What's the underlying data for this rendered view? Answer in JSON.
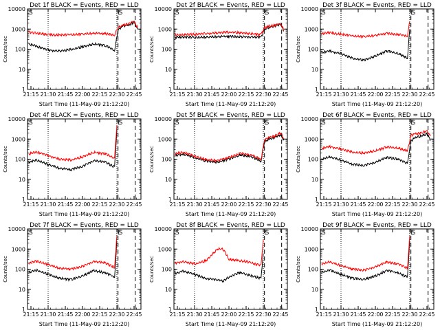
{
  "chart_data": [
    {
      "type": "line",
      "title": "Det 1f BLACK = Events, RED = LLD",
      "ylabel": "Counts/sec",
      "xlabel": "Start Time (11-May-09 21:12:20)",
      "ylim": [
        1,
        10000
      ],
      "yscale": "log",
      "xlim": [
        "21:12",
        "22:51"
      ],
      "x_ticks": [
        "21:15",
        "21:30",
        "21:45",
        "22:00",
        "22:15",
        "22:30",
        "22:45"
      ],
      "y_ticks": [
        "1",
        "10",
        "100",
        "1000",
        "10000"
      ],
      "markers": [
        {
          "time": "21:30",
          "style": "dotted"
        },
        {
          "time": "22:30",
          "style": "dotted"
        },
        {
          "time": "22:31",
          "style": "dashed"
        },
        {
          "time": "22:46",
          "style": "dashed"
        }
      ],
      "marker_labels": [
        "S",
        "E",
        "S"
      ],
      "series": [
        {
          "color": "#000000",
          "x": [
            "21:13",
            "21:20",
            "21:30",
            "21:40",
            "21:50",
            "22:00",
            "22:10",
            "22:20",
            "22:28",
            "22:31",
            "22:35",
            "22:40",
            "22:45",
            "22:48"
          ],
          "values": [
            180,
            140,
            90,
            80,
            95,
            130,
            180,
            150,
            85,
            900,
            1400,
            1500,
            2200,
            1000
          ]
        },
        {
          "color": "#ff0000",
          "x": [
            "21:13",
            "21:20",
            "21:30",
            "21:40",
            "21:50",
            "22:00",
            "22:10",
            "22:20",
            "22:28",
            "22:31",
            "22:35",
            "22:40",
            "22:45",
            "22:48"
          ],
          "values": [
            700,
            620,
            520,
            500,
            520,
            560,
            620,
            580,
            520,
            1200,
            1500,
            1800,
            2400,
            1200
          ]
        }
      ]
    },
    {
      "type": "line",
      "title": "Det 2f BLACK = Events, RED = LLD",
      "ylabel": "Counts/sec",
      "xlabel": "Start Time (11-May-09 21:12:20)",
      "ylim": [
        1,
        10000
      ],
      "yscale": "log",
      "xlim": [
        "21:12",
        "22:51"
      ],
      "x_ticks": [
        "21:15",
        "21:30",
        "21:45",
        "22:00",
        "22:15",
        "22:30",
        "22:45"
      ],
      "y_ticks": [
        "1",
        "10",
        "100",
        "1000",
        "10000"
      ],
      "markers": [
        {
          "time": "21:30",
          "style": "dotted"
        },
        {
          "time": "22:30",
          "style": "dotted"
        },
        {
          "time": "22:31",
          "style": "dashed"
        },
        {
          "time": "22:46",
          "style": "dashed"
        }
      ],
      "marker_labels": [
        "S",
        "E",
        "S"
      ],
      "series": [
        {
          "color": "#000000",
          "x": [
            "21:13",
            "21:20",
            "21:30",
            "21:40",
            "21:50",
            "22:00",
            "22:10",
            "22:20",
            "22:28",
            "22:31",
            "22:35",
            "22:40",
            "22:45",
            "22:48"
          ],
          "values": [
            380,
            400,
            380,
            400,
            420,
            430,
            420,
            400,
            380,
            950,
            1200,
            1400,
            1700,
            800
          ]
        },
        {
          "color": "#ff0000",
          "x": [
            "21:13",
            "21:20",
            "21:30",
            "21:40",
            "21:50",
            "22:00",
            "22:10",
            "22:20",
            "22:28",
            "22:31",
            "22:35",
            "22:40",
            "22:45",
            "22:48"
          ],
          "values": [
            500,
            520,
            550,
            600,
            650,
            700,
            650,
            580,
            520,
            1100,
            1400,
            1500,
            1800,
            900
          ]
        }
      ]
    },
    {
      "type": "line",
      "title": "Det 3f BLACK = Events, RED = LLD",
      "ylabel": "Counts/sec",
      "xlabel": "Start Time (11-May-09 21:12:20)",
      "ylim": [
        1,
        10000
      ],
      "yscale": "log",
      "xlim": [
        "21:12",
        "22:51"
      ],
      "x_ticks": [
        "21:15",
        "21:30",
        "21:45",
        "22:00",
        "22:15",
        "22:30",
        "22:45"
      ],
      "y_ticks": [
        "1",
        "10",
        "100",
        "1000",
        "10000"
      ],
      "markers": [
        {
          "time": "21:30",
          "style": "dotted"
        },
        {
          "time": "22:30",
          "style": "dotted"
        },
        {
          "time": "22:31",
          "style": "dashed"
        },
        {
          "time": "22:46",
          "style": "dashed"
        }
      ],
      "marker_labels": [
        "S",
        "E",
        "S"
      ],
      "series": [
        {
          "color": "#000000",
          "x": [
            "21:13",
            "21:20",
            "21:30",
            "21:40",
            "21:50",
            "22:00",
            "22:10",
            "22:20",
            "22:28",
            "22:30"
          ],
          "values": [
            70,
            80,
            60,
            35,
            28,
            45,
            80,
            60,
            35,
            1000
          ]
        },
        {
          "color": "#ff0000",
          "x": [
            "21:13",
            "21:20",
            "21:30",
            "21:40",
            "21:50",
            "22:00",
            "22:10",
            "22:20",
            "22:28",
            "22:30"
          ],
          "values": [
            600,
            650,
            550,
            450,
            420,
            480,
            600,
            550,
            450,
            2500
          ]
        }
      ]
    },
    {
      "type": "line",
      "title": "Det 4f BLACK = Events, RED = LLD",
      "ylabel": "Counts/sec",
      "xlabel": "Start Time (11-May-09 21:12:20)",
      "ylim": [
        1,
        10000
      ],
      "yscale": "log",
      "xlim": [
        "21:12",
        "22:51"
      ],
      "x_ticks": [
        "21:15",
        "21:30",
        "21:45",
        "22:00",
        "22:15",
        "22:30",
        "22:45"
      ],
      "y_ticks": [
        "1",
        "10",
        "100",
        "1000",
        "10000"
      ],
      "markers": [
        {
          "time": "21:30",
          "style": "dotted"
        },
        {
          "time": "22:30",
          "style": "dotted"
        },
        {
          "time": "22:31",
          "style": "dashed"
        },
        {
          "time": "22:46",
          "style": "dashed"
        }
      ],
      "marker_labels": [
        "S",
        "E",
        "S"
      ],
      "series": [
        {
          "color": "#000000",
          "x": [
            "21:13",
            "21:20",
            "21:30",
            "21:40",
            "21:50",
            "22:00",
            "22:10",
            "22:20",
            "22:28",
            "22:30"
          ],
          "values": [
            70,
            90,
            55,
            35,
            30,
            45,
            85,
            70,
            40,
            3000
          ]
        },
        {
          "color": "#ff0000",
          "x": [
            "21:13",
            "21:20",
            "21:30",
            "21:40",
            "21:50",
            "22:00",
            "22:10",
            "22:20",
            "22:28",
            "22:30"
          ],
          "values": [
            180,
            230,
            150,
            100,
            90,
            130,
            220,
            180,
            110,
            5000
          ]
        }
      ]
    },
    {
      "type": "line",
      "title": "Det 5f BLACK = Events, RED = LLD",
      "ylabel": "Counts/sec",
      "xlabel": "Start Time (11-May-09 21:12:20)",
      "ylim": [
        1,
        10000
      ],
      "yscale": "log",
      "xlim": [
        "21:12",
        "22:51"
      ],
      "x_ticks": [
        "21:15",
        "21:30",
        "21:45",
        "22:00",
        "22:15",
        "22:30",
        "22:45"
      ],
      "y_ticks": [
        "1",
        "10",
        "100",
        "1000",
        "10000"
      ],
      "markers": [
        {
          "time": "21:30",
          "style": "dotted"
        },
        {
          "time": "22:30",
          "style": "dotted"
        },
        {
          "time": "22:31",
          "style": "dashed"
        },
        {
          "time": "22:46",
          "style": "dashed"
        }
      ],
      "marker_labels": [
        "S",
        "E",
        "S"
      ],
      "series": [
        {
          "color": "#000000",
          "x": [
            "21:13",
            "21:20",
            "21:30",
            "21:40",
            "21:50",
            "22:00",
            "22:10",
            "22:20",
            "22:28",
            "22:31",
            "22:35",
            "22:40",
            "22:45",
            "22:48"
          ],
          "values": [
            150,
            180,
            120,
            80,
            70,
            100,
            160,
            130,
            80,
            700,
            1000,
            1200,
            1600,
            900
          ]
        },
        {
          "color": "#ff0000",
          "x": [
            "21:13",
            "21:20",
            "21:30",
            "21:40",
            "21:50",
            "22:00",
            "22:10",
            "22:20",
            "22:28",
            "22:31",
            "22:35",
            "22:40",
            "22:45",
            "22:48"
          ],
          "values": [
            180,
            220,
            140,
            95,
            85,
            120,
            200,
            160,
            95,
            900,
            1200,
            1400,
            2000,
            1100
          ]
        }
      ]
    },
    {
      "type": "line",
      "title": "Det 6f BLACK = Events, RED = LLD",
      "ylabel": "Counts/sec",
      "xlabel": "Start Time (11-May-09 21:12:20)",
      "ylim": [
        1,
        10000
      ],
      "yscale": "log",
      "xlim": [
        "21:12",
        "22:51"
      ],
      "x_ticks": [
        "21:15",
        "21:30",
        "21:45",
        "22:00",
        "22:15",
        "22:30",
        "22:45"
      ],
      "y_ticks": [
        "1",
        "10",
        "100",
        "1000",
        "10000"
      ],
      "markers": [
        {
          "time": "21:30",
          "style": "dotted"
        },
        {
          "time": "22:30",
          "style": "dotted"
        },
        {
          "time": "22:31",
          "style": "dashed"
        },
        {
          "time": "22:46",
          "style": "dashed"
        }
      ],
      "marker_labels": [
        "S",
        "E",
        "S"
      ],
      "series": [
        {
          "color": "#000000",
          "x": [
            "21:13",
            "21:20",
            "21:30",
            "21:40",
            "21:50",
            "22:00",
            "22:10",
            "22:20",
            "22:28",
            "22:31",
            "22:35",
            "22:40",
            "22:45",
            "22:48"
          ],
          "values": [
            100,
            130,
            90,
            55,
            50,
            70,
            120,
            100,
            60,
            800,
            1200,
            1400,
            1800,
            900
          ]
        },
        {
          "color": "#ff0000",
          "x": [
            "21:13",
            "21:20",
            "21:30",
            "21:40",
            "21:50",
            "22:00",
            "22:10",
            "22:20",
            "22:28",
            "22:31",
            "22:35",
            "22:40",
            "22:45",
            "22:48"
          ],
          "values": [
            350,
            420,
            320,
            220,
            200,
            260,
            400,
            350,
            250,
            1500,
            1800,
            2000,
            2600,
            1400
          ]
        }
      ]
    },
    {
      "type": "line",
      "title": "Det 7f BLACK = Events, RED = LLD",
      "ylabel": "Counts/sec",
      "xlabel": "Start Time (11-May-09 21:12:20)",
      "ylim": [
        1,
        10000
      ],
      "yscale": "log",
      "xlim": [
        "21:12",
        "22:51"
      ],
      "x_ticks": [
        "21:15",
        "21:30",
        "21:45",
        "22:00",
        "22:15",
        "22:30",
        "22:45"
      ],
      "y_ticks": [
        "1",
        "10",
        "100",
        "1000",
        "10000"
      ],
      "markers": [
        {
          "time": "21:30",
          "style": "dotted"
        },
        {
          "time": "22:30",
          "style": "dotted"
        },
        {
          "time": "22:31",
          "style": "dashed"
        },
        {
          "time": "22:46",
          "style": "dashed"
        }
      ],
      "marker_labels": [
        "S",
        "E",
        "S"
      ],
      "series": [
        {
          "color": "#000000",
          "x": [
            "21:13",
            "21:20",
            "21:30",
            "21:40",
            "21:50",
            "22:00",
            "22:10",
            "22:20",
            "22:28",
            "22:30"
          ],
          "values": [
            70,
            90,
            55,
            35,
            30,
            45,
            85,
            65,
            40,
            2500
          ]
        },
        {
          "color": "#ff0000",
          "x": [
            "21:13",
            "21:20",
            "21:30",
            "21:40",
            "21:50",
            "22:00",
            "22:10",
            "22:20",
            "22:28",
            "22:30"
          ],
          "values": [
            200,
            250,
            170,
            110,
            100,
            140,
            240,
            200,
            120,
            4500
          ]
        }
      ]
    },
    {
      "type": "line",
      "title": "Det 8f BLACK = Events, RED = LLD",
      "ylabel": "Counts/sec",
      "xlabel": "Start Time (11-May-09 21:12:20)",
      "ylim": [
        1,
        10000
      ],
      "yscale": "log",
      "xlim": [
        "21:12",
        "22:51"
      ],
      "x_ticks": [
        "21:15",
        "21:30",
        "21:45",
        "22:00",
        "22:15",
        "22:30",
        "22:45"
      ],
      "y_ticks": [
        "1",
        "10",
        "100",
        "1000",
        "10000"
      ],
      "markers": [
        {
          "time": "21:30",
          "style": "dotted"
        },
        {
          "time": "22:30",
          "style": "dotted"
        },
        {
          "time": "22:31",
          "style": "dashed"
        },
        {
          "time": "22:46",
          "style": "dashed"
        }
      ],
      "marker_labels": [
        "S",
        "E",
        "S"
      ],
      "series": [
        {
          "color": "#000000",
          "x": [
            "21:13",
            "21:20",
            "21:30",
            "21:40",
            "21:50",
            "21:55",
            "22:00",
            "22:10",
            "22:15",
            "22:20",
            "22:28",
            "22:30"
          ],
          "values": [
            60,
            80,
            55,
            35,
            30,
            25,
            40,
            70,
            55,
            45,
            35,
            600
          ]
        },
        {
          "color": "#ff0000",
          "x": [
            "21:13",
            "21:20",
            "21:30",
            "21:40",
            "21:50",
            "21:55",
            "22:00",
            "22:10",
            "22:15",
            "22:20",
            "22:28",
            "22:30"
          ],
          "values": [
            200,
            240,
            180,
            260,
            1000,
            1000,
            300,
            260,
            240,
            200,
            150,
            3000
          ]
        }
      ]
    },
    {
      "type": "line",
      "title": "Det 9f BLACK = Events, RED = LLD",
      "ylabel": "Counts/sec",
      "xlabel": "Start Time (11-May-09 21:12:20)",
      "ylim": [
        1,
        10000
      ],
      "yscale": "log",
      "xlim": [
        "21:12",
        "22:51"
      ],
      "x_ticks": [
        "21:15",
        "21:30",
        "21:45",
        "22:00",
        "22:15",
        "22:30",
        "22:45"
      ],
      "y_ticks": [
        "1",
        "10",
        "100",
        "1000",
        "10000"
      ],
      "markers": [
        {
          "time": "21:30",
          "style": "dotted"
        },
        {
          "time": "22:30",
          "style": "dotted"
        },
        {
          "time": "22:31",
          "style": "dashed"
        },
        {
          "time": "22:46",
          "style": "dashed"
        }
      ],
      "marker_labels": [
        "S",
        "E",
        "S"
      ],
      "series": [
        {
          "color": "#000000",
          "x": [
            "21:13",
            "21:20",
            "21:30",
            "21:40",
            "21:50",
            "22:00",
            "22:10",
            "22:20",
            "22:28",
            "22:30"
          ],
          "values": [
            70,
            90,
            55,
            35,
            30,
            45,
            85,
            65,
            40,
            2500
          ]
        },
        {
          "color": "#ff0000",
          "x": [
            "21:13",
            "21:20",
            "21:30",
            "21:40",
            "21:50",
            "22:00",
            "22:10",
            "22:20",
            "22:28",
            "22:30"
          ],
          "values": [
            180,
            230,
            150,
            100,
            90,
            130,
            220,
            180,
            110,
            4500
          ]
        }
      ]
    }
  ]
}
